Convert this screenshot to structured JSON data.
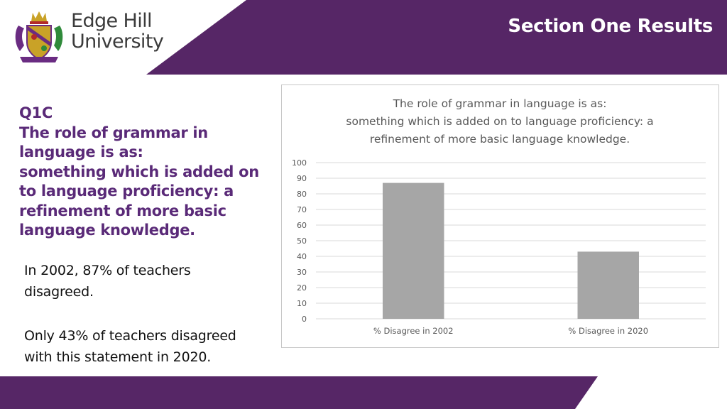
{
  "header": {
    "title": "Section One Results",
    "band_color": "#562666"
  },
  "logo": {
    "line1": "Edge Hill",
    "line2": "University"
  },
  "question": {
    "id": "Q1C",
    "lines": [
      "The role of grammar in",
      "language is as:",
      "something which is added on",
      "to language proficiency: a",
      "refinement of more basic",
      "language knowledge."
    ]
  },
  "paragraphs": {
    "p1_line1": "In 2002, 87% of teachers",
    "p1_line2": "disagreed.",
    "p2_line1": "Only 43% of teachers disagreed",
    "p2_line2": "with this statement in 2020."
  },
  "chart_data": {
    "type": "bar",
    "title": [
      "The role of grammar in language is as:",
      "something which is added on to language proficiency: a",
      "refinement of more basic language knowledge."
    ],
    "categories": [
      "% Disagree in 2002",
      "% Disagree in 2020"
    ],
    "values": [
      87,
      43
    ],
    "ylim": [
      0,
      100
    ],
    "yticks": [
      0,
      10,
      20,
      30,
      40,
      50,
      60,
      70,
      80,
      90,
      100
    ],
    "grid": true,
    "bar_color": "#a6a6a6"
  }
}
